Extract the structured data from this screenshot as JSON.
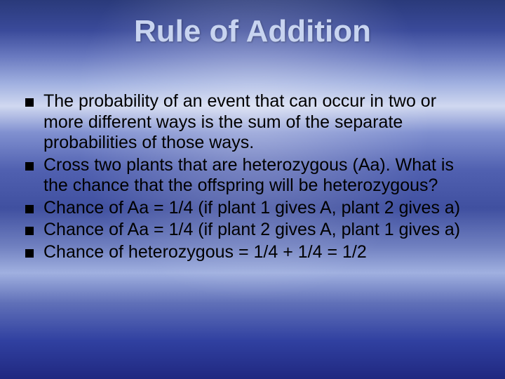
{
  "title": "Rule of Addition",
  "title_color": "#c8d4f0",
  "title_fontsize": 44,
  "body_fontsize": 25,
  "body_color": "#000000",
  "bullet_color": "#000000",
  "background_gradient": [
    "#2a3a7a",
    "#3a4a9a",
    "#6a7ac0",
    "#a0b0e0",
    "#d0d8f0",
    "#8090d0",
    "#5060b0",
    "#4050a0",
    "#7080c0",
    "#a0b0e0",
    "#6070b8",
    "#3040a0",
    "#202880"
  ],
  "bullets": [
    "The probability of an event that can occur in two or more different ways is the sum of the separate probabilities of those ways.",
    "Cross two plants that are heterozygous (Aa).  What is the chance that the offspring will be heterozygous?",
    "Chance of Aa = 1/4 (if plant 1 gives A, plant 2 gives a)",
    "Chance of Aa = 1/4 (if plant 2 gives A, plant 1 gives a)",
    "Chance of heterozygous = 1/4 + 1/4 = 1/2"
  ]
}
